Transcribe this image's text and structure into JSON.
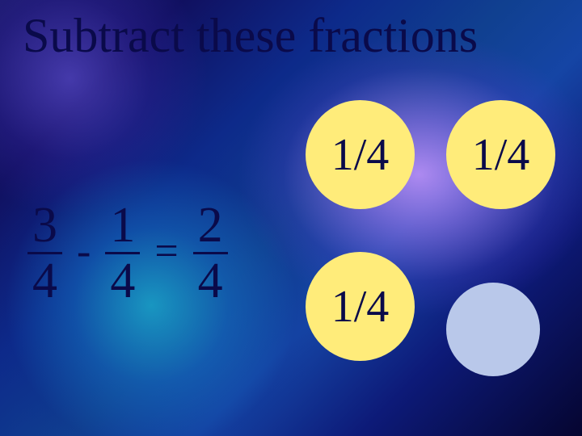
{
  "title": "Subtract these fractions",
  "equation": {
    "f1": {
      "num": "3",
      "den": "4"
    },
    "op1": "-",
    "f2": {
      "num": "1",
      "den": "4"
    },
    "op2": "=",
    "f3": {
      "num": "2",
      "den": "4"
    }
  },
  "circles": {
    "c1": {
      "label": "1/4",
      "fill": "#ffec7a"
    },
    "c2": {
      "label": "1/4",
      "fill": "#ffec7a"
    },
    "c3": {
      "label": "1/4",
      "fill": "#ffec7a"
    },
    "c4": {
      "label": "",
      "fill": "#b9c8ea"
    }
  },
  "colors": {
    "text": "#0a0a4a"
  }
}
